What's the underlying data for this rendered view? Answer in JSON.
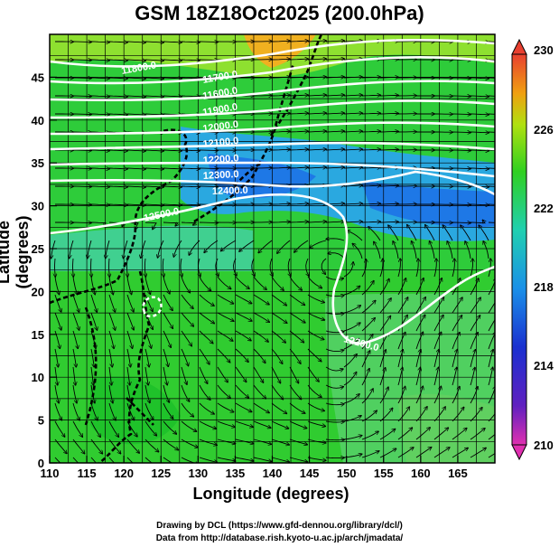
{
  "title": "GSM 18Z18Oct2025 (200.0hPa)",
  "x_axis": {
    "label": "Longitude (degrees)",
    "range": [
      110,
      170
    ],
    "ticks": [
      "110",
      "115",
      "120",
      "125",
      "130",
      "135",
      "140",
      "145",
      "150",
      "155",
      "160",
      "165"
    ]
  },
  "y_axis": {
    "label": "Latitude  (degrees)",
    "range": [
      0,
      50
    ],
    "ticks": [
      "0",
      "5",
      "10",
      "15",
      "20",
      "25",
      "30",
      "35",
      "40",
      "45"
    ]
  },
  "colorbar": {
    "range": [
      210,
      230
    ],
    "tick_labels": [
      "230",
      "226",
      "222",
      "218",
      "214",
      "210"
    ]
  },
  "contour_labels": [
    "11800.0",
    "11700.0",
    "11600.0",
    "11900.0",
    "12000.0",
    "12100.0",
    "12200.0",
    "12300.0",
    "12400.0",
    "12500.0",
    "12200.0"
  ],
  "credits": {
    "line1": "Drawing by DCL (https://www.gfd-dennou.org/library/dcl/)",
    "line2": "Data from http://database.rish.kyoto-u.ac.jp/arch/jmadata/"
  },
  "colors": {
    "high": "#e8402a",
    "mid": "#22cc22",
    "low": "#1e78e6"
  }
}
